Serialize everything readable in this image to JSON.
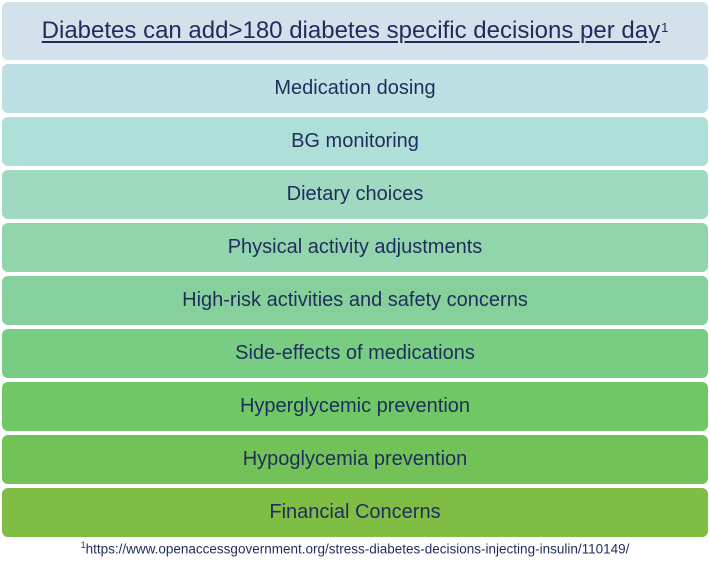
{
  "header": {
    "title": "Diabetes can add>180 diabetes specific decisions per day",
    "footnote_marker": "1",
    "color": "#d2e1ea"
  },
  "items": [
    {
      "label": "Medication dosing",
      "color": "#bde0e4"
    },
    {
      "label": "BG monitoring",
      "color": "#aedfd8"
    },
    {
      "label": "Dietary choices",
      "color": "#9ed9c0"
    },
    {
      "label": "Physical activity adjustments",
      "color": "#92d5ad"
    },
    {
      "label": "High-risk activities and safety concerns",
      "color": "#86d19b"
    },
    {
      "label": "Side-effects of medications",
      "color": "#78cd82"
    },
    {
      "label": "Hyperglycemic prevention",
      "color": "#70c766"
    },
    {
      "label": "Hypoglycemia prevention",
      "color": "#72c257"
    },
    {
      "label": "Financial Concerns",
      "color": "#7fbd45"
    }
  ],
  "footnote": {
    "marker": "1",
    "text": "https://www.openaccessgovernment.org/stress-diabetes-decisions-injecting-insulin/110149/"
  },
  "text_color": "#1f2d5c"
}
